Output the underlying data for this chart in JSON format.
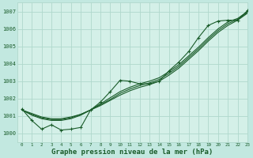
{
  "title": "Graphe pression niveau de la mer (hPa)",
  "background_color": "#c2e8e0",
  "plot_bg_color": "#d4f0e8",
  "grid_color": "#b0d8cc",
  "line_color": "#1a5c2a",
  "xlim": [
    -0.5,
    23
  ],
  "ylim": [
    999.5,
    1007.5
  ],
  "yticks": [
    1000,
    1001,
    1002,
    1003,
    1004,
    1005,
    1006,
    1007
  ],
  "xticks": [
    0,
    1,
    2,
    3,
    4,
    5,
    6,
    7,
    8,
    9,
    10,
    11,
    12,
    13,
    14,
    15,
    16,
    17,
    18,
    19,
    20,
    21,
    22,
    23
  ],
  "series": {
    "main": [
      [
        0,
        1001.4
      ],
      [
        1,
        1000.75
      ],
      [
        2,
        1000.25
      ],
      [
        3,
        1000.5
      ],
      [
        4,
        1000.2
      ],
      [
        5,
        1000.25
      ],
      [
        6,
        1000.35
      ],
      [
        7,
        1001.35
      ],
      [
        8,
        1001.8
      ],
      [
        9,
        1002.4
      ],
      [
        10,
        1003.05
      ],
      [
        11,
        1003.0
      ],
      [
        12,
        1002.85
      ],
      [
        13,
        1002.85
      ],
      [
        14,
        1003.0
      ],
      [
        15,
        1003.6
      ],
      [
        16,
        1004.1
      ],
      [
        17,
        1004.7
      ],
      [
        18,
        1005.5
      ],
      [
        19,
        1006.2
      ],
      [
        20,
        1006.45
      ],
      [
        21,
        1006.5
      ],
      [
        22,
        1006.5
      ],
      [
        23,
        1007.05
      ]
    ],
    "smooth1": [
      [
        0,
        1001.35
      ],
      [
        1,
        1001.05
      ],
      [
        2,
        1000.85
      ],
      [
        3,
        1000.75
      ],
      [
        4,
        1000.75
      ],
      [
        5,
        1000.85
      ],
      [
        6,
        1001.05
      ],
      [
        7,
        1001.35
      ],
      [
        8,
        1001.7
      ],
      [
        9,
        1002.05
      ],
      [
        10,
        1002.4
      ],
      [
        11,
        1002.65
      ],
      [
        12,
        1002.85
      ],
      [
        13,
        1003.0
      ],
      [
        14,
        1003.2
      ],
      [
        15,
        1003.55
      ],
      [
        16,
        1003.95
      ],
      [
        17,
        1004.45
      ],
      [
        18,
        1004.95
      ],
      [
        19,
        1005.5
      ],
      [
        20,
        1006.0
      ],
      [
        21,
        1006.4
      ],
      [
        22,
        1006.6
      ],
      [
        23,
        1007.0
      ]
    ],
    "smooth2": [
      [
        0,
        1001.35
      ],
      [
        1,
        1001.1
      ],
      [
        2,
        1000.9
      ],
      [
        3,
        1000.8
      ],
      [
        4,
        1000.8
      ],
      [
        5,
        1000.9
      ],
      [
        6,
        1001.1
      ],
      [
        7,
        1001.35
      ],
      [
        8,
        1001.65
      ],
      [
        9,
        1001.95
      ],
      [
        10,
        1002.3
      ],
      [
        11,
        1002.55
      ],
      [
        12,
        1002.75
      ],
      [
        13,
        1002.9
      ],
      [
        14,
        1003.1
      ],
      [
        15,
        1003.45
      ],
      [
        16,
        1003.85
      ],
      [
        17,
        1004.35
      ],
      [
        18,
        1004.85
      ],
      [
        19,
        1005.4
      ],
      [
        20,
        1005.9
      ],
      [
        21,
        1006.3
      ],
      [
        22,
        1006.55
      ],
      [
        23,
        1006.95
      ]
    ],
    "smooth3": [
      [
        0,
        1001.35
      ],
      [
        1,
        1001.15
      ],
      [
        2,
        1000.95
      ],
      [
        3,
        1000.85
      ],
      [
        4,
        1000.85
      ],
      [
        5,
        1000.95
      ],
      [
        6,
        1001.1
      ],
      [
        7,
        1001.35
      ],
      [
        8,
        1001.6
      ],
      [
        9,
        1001.9
      ],
      [
        10,
        1002.2
      ],
      [
        11,
        1002.45
      ],
      [
        12,
        1002.65
      ],
      [
        13,
        1002.8
      ],
      [
        14,
        1003.0
      ],
      [
        15,
        1003.35
      ],
      [
        16,
        1003.75
      ],
      [
        17,
        1004.25
      ],
      [
        18,
        1004.75
      ],
      [
        19,
        1005.3
      ],
      [
        20,
        1005.8
      ],
      [
        21,
        1006.2
      ],
      [
        22,
        1006.5
      ],
      [
        23,
        1006.9
      ]
    ]
  }
}
